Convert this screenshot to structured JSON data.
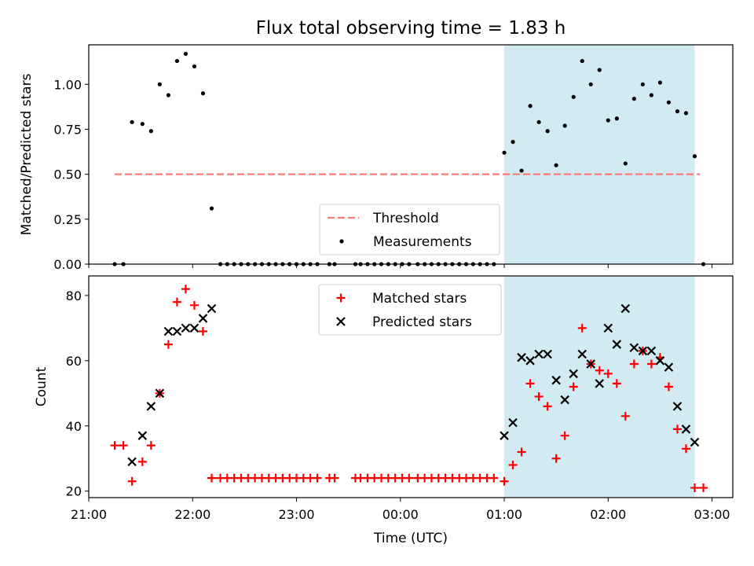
{
  "chart_data": {
    "title": "Flux total observing time = 1.83 h",
    "xlabel": "Time (UTC)",
    "xlim": [
      "2000-01-01T21:00",
      "2000-01-02T03:12"
    ],
    "x_ticks": [
      {
        "t": "2000-01-01T21:00",
        "label": "21:00"
      },
      {
        "t": "2000-01-01T22:00",
        "label": "22:00"
      },
      {
        "t": "2000-01-01T23:00",
        "label": "23:00"
      },
      {
        "t": "2000-01-02T00:00",
        "label": "00:00"
      },
      {
        "t": "2000-01-02T01:00",
        "label": "01:00"
      },
      {
        "t": "2000-01-02T02:00",
        "label": "02:00"
      },
      {
        "t": "2000-01-02T03:00",
        "label": "03:00"
      }
    ],
    "highlight": {
      "start": "2000-01-02T01:00",
      "end": "2000-01-02T02:50",
      "color": "#add8e6"
    },
    "panels": [
      {
        "type": "scatter",
        "ylabel": "Matched/Predicted stars",
        "ylim": [
          0,
          1.22
        ],
        "yticks": [
          "0.00",
          "0.25",
          "0.50",
          "0.75",
          "1.00"
        ],
        "ytick_values": [
          0,
          0.25,
          0.5,
          0.75,
          1.0
        ],
        "threshold": {
          "name": "Threshold",
          "value": 0.5,
          "start": "2000-01-01T21:15",
          "end": "2000-01-02T02:53",
          "color": "#ff7777"
        },
        "legend": {
          "location": "lower-center",
          "entries": [
            "Threshold",
            "Measurements"
          ]
        },
        "series": [
          {
            "name": "Measurements",
            "marker": "dot",
            "color": "#000000",
            "points": [
              [
                "2000-01-01T21:15",
                0
              ],
              [
                "2000-01-01T21:20",
                0
              ],
              [
                "2000-01-01T21:25",
                0.79
              ],
              [
                "2000-01-01T21:31",
                0.78
              ],
              [
                "2000-01-01T21:36",
                0.74
              ],
              [
                "2000-01-01T21:41",
                1.0
              ],
              [
                "2000-01-01T21:46",
                0.94
              ],
              [
                "2000-01-01T21:51",
                1.13
              ],
              [
                "2000-01-01T21:56",
                1.17
              ],
              [
                "2000-01-01T22:01",
                1.1
              ],
              [
                "2000-01-01T22:06",
                0.95
              ],
              [
                "2000-01-01T22:11",
                0.31
              ],
              [
                "2000-01-01T22:16",
                0
              ],
              [
                "2000-01-01T22:20",
                0
              ],
              [
                "2000-01-01T22:24",
                0
              ],
              [
                "2000-01-01T22:28",
                0
              ],
              [
                "2000-01-01T22:32",
                0
              ],
              [
                "2000-01-01T22:36",
                0
              ],
              [
                "2000-01-01T22:40",
                0
              ],
              [
                "2000-01-01T22:44",
                0
              ],
              [
                "2000-01-01T22:48",
                0
              ],
              [
                "2000-01-01T22:52",
                0
              ],
              [
                "2000-01-01T22:56",
                0
              ],
              [
                "2000-01-01T23:00",
                0
              ],
              [
                "2000-01-01T23:04",
                0
              ],
              [
                "2000-01-01T23:08",
                0
              ],
              [
                "2000-01-01T23:12",
                0
              ],
              [
                "2000-01-01T23:19",
                0
              ],
              [
                "2000-01-01T23:22",
                0
              ],
              [
                "2000-01-01T23:34",
                0
              ],
              [
                "2000-01-01T23:37",
                0
              ],
              [
                "2000-01-01T23:41",
                0
              ],
              [
                "2000-01-01T23:45",
                0
              ],
              [
                "2000-01-01T23:49",
                0
              ],
              [
                "2000-01-01T23:53",
                0
              ],
              [
                "2000-01-01T23:57",
                0
              ],
              [
                "2000-01-02T00:01",
                0
              ],
              [
                "2000-01-02T00:05",
                0
              ],
              [
                "2000-01-02T00:10",
                0
              ],
              [
                "2000-01-02T00:14",
                0
              ],
              [
                "2000-01-02T00:18",
                0
              ],
              [
                "2000-01-02T00:22",
                0
              ],
              [
                "2000-01-02T00:26",
                0
              ],
              [
                "2000-01-02T00:30",
                0
              ],
              [
                "2000-01-02T00:34",
                0
              ],
              [
                "2000-01-02T00:38",
                0
              ],
              [
                "2000-01-02T00:42",
                0
              ],
              [
                "2000-01-02T00:46",
                0
              ],
              [
                "2000-01-02T00:50",
                0
              ],
              [
                "2000-01-02T00:54",
                0
              ],
              [
                "2000-01-02T01:00",
                0.62
              ],
              [
                "2000-01-02T01:05",
                0.68
              ],
              [
                "2000-01-02T01:10",
                0.52
              ],
              [
                "2000-01-02T01:15",
                0.88
              ],
              [
                "2000-01-02T01:20",
                0.79
              ],
              [
                "2000-01-02T01:25",
                0.74
              ],
              [
                "2000-01-02T01:30",
                0.55
              ],
              [
                "2000-01-02T01:35",
                0.77
              ],
              [
                "2000-01-02T01:40",
                0.93
              ],
              [
                "2000-01-02T01:45",
                1.13
              ],
              [
                "2000-01-02T01:50",
                1.0
              ],
              [
                "2000-01-02T01:55",
                1.08
              ],
              [
                "2000-01-02T02:00",
                0.8
              ],
              [
                "2000-01-02T02:05",
                0.81
              ],
              [
                "2000-01-02T02:10",
                0.56
              ],
              [
                "2000-01-02T02:15",
                0.92
              ],
              [
                "2000-01-02T02:20",
                1.0
              ],
              [
                "2000-01-02T02:25",
                0.94
              ],
              [
                "2000-01-02T02:30",
                1.01
              ],
              [
                "2000-01-02T02:35",
                0.9
              ],
              [
                "2000-01-02T02:40",
                0.85
              ],
              [
                "2000-01-02T02:45",
                0.84
              ],
              [
                "2000-01-02T02:50",
                0.6
              ],
              [
                "2000-01-02T02:55",
                0
              ]
            ]
          }
        ]
      },
      {
        "type": "scatter",
        "ylabel": "Count",
        "ylim": [
          18,
          86
        ],
        "yticks": [
          "20",
          "40",
          "60",
          "80"
        ],
        "ytick_values": [
          20,
          40,
          60,
          80
        ],
        "legend": {
          "location": "upper-center",
          "entries": [
            "Matched stars",
            "Predicted stars"
          ]
        },
        "series": [
          {
            "name": "Matched stars",
            "marker": "plus",
            "color": "#ff0000",
            "points": [
              [
                "2000-01-01T21:15",
                34
              ],
              [
                "2000-01-01T21:20",
                34
              ],
              [
                "2000-01-01T21:25",
                23
              ],
              [
                "2000-01-01T21:31",
                29
              ],
              [
                "2000-01-01T21:36",
                34
              ],
              [
                "2000-01-01T21:41",
                50
              ],
              [
                "2000-01-01T21:46",
                65
              ],
              [
                "2000-01-01T21:51",
                78
              ],
              [
                "2000-01-01T21:56",
                82
              ],
              [
                "2000-01-01T22:01",
                77
              ],
              [
                "2000-01-01T22:06",
                69
              ],
              [
                "2000-01-01T22:11",
                24
              ],
              [
                "2000-01-01T22:16",
                24
              ],
              [
                "2000-01-01T22:20",
                24
              ],
              [
                "2000-01-01T22:24",
                24
              ],
              [
                "2000-01-01T22:28",
                24
              ],
              [
                "2000-01-01T22:32",
                24
              ],
              [
                "2000-01-01T22:36",
                24
              ],
              [
                "2000-01-01T22:40",
                24
              ],
              [
                "2000-01-01T22:44",
                24
              ],
              [
                "2000-01-01T22:48",
                24
              ],
              [
                "2000-01-01T22:52",
                24
              ],
              [
                "2000-01-01T22:56",
                24
              ],
              [
                "2000-01-01T23:00",
                24
              ],
              [
                "2000-01-01T23:04",
                24
              ],
              [
                "2000-01-01T23:08",
                24
              ],
              [
                "2000-01-01T23:12",
                24
              ],
              [
                "2000-01-01T23:19",
                24
              ],
              [
                "2000-01-01T23:22",
                24
              ],
              [
                "2000-01-01T23:34",
                24
              ],
              [
                "2000-01-01T23:37",
                24
              ],
              [
                "2000-01-01T23:41",
                24
              ],
              [
                "2000-01-01T23:45",
                24
              ],
              [
                "2000-01-01T23:49",
                24
              ],
              [
                "2000-01-01T23:53",
                24
              ],
              [
                "2000-01-01T23:57",
                24
              ],
              [
                "2000-01-02T00:01",
                24
              ],
              [
                "2000-01-02T00:05",
                24
              ],
              [
                "2000-01-02T00:10",
                24
              ],
              [
                "2000-01-02T00:14",
                24
              ],
              [
                "2000-01-02T00:18",
                24
              ],
              [
                "2000-01-02T00:22",
                24
              ],
              [
                "2000-01-02T00:26",
                24
              ],
              [
                "2000-01-02T00:30",
                24
              ],
              [
                "2000-01-02T00:34",
                24
              ],
              [
                "2000-01-02T00:38",
                24
              ],
              [
                "2000-01-02T00:42",
                24
              ],
              [
                "2000-01-02T00:46",
                24
              ],
              [
                "2000-01-02T00:50",
                24
              ],
              [
                "2000-01-02T00:54",
                24
              ],
              [
                "2000-01-02T01:00",
                23
              ],
              [
                "2000-01-02T01:05",
                28
              ],
              [
                "2000-01-02T01:10",
                32
              ],
              [
                "2000-01-02T01:15",
                53
              ],
              [
                "2000-01-02T01:20",
                49
              ],
              [
                "2000-01-02T01:25",
                46
              ],
              [
                "2000-01-02T01:30",
                30
              ],
              [
                "2000-01-02T01:35",
                37
              ],
              [
                "2000-01-02T01:40",
                52
              ],
              [
                "2000-01-02T01:45",
                70
              ],
              [
                "2000-01-02T01:50",
                59
              ],
              [
                "2000-01-02T01:55",
                57
              ],
              [
                "2000-01-02T02:00",
                56
              ],
              [
                "2000-01-02T02:05",
                53
              ],
              [
                "2000-01-02T02:10",
                43
              ],
              [
                "2000-01-02T02:15",
                59
              ],
              [
                "2000-01-02T02:20",
                63
              ],
              [
                "2000-01-02T02:25",
                59
              ],
              [
                "2000-01-02T02:30",
                61
              ],
              [
                "2000-01-02T02:35",
                52
              ],
              [
                "2000-01-02T02:40",
                39
              ],
              [
                "2000-01-02T02:45",
                33
              ],
              [
                "2000-01-02T02:50",
                21
              ],
              [
                "2000-01-02T02:55",
                21
              ]
            ]
          },
          {
            "name": "Predicted stars",
            "marker": "x",
            "color": "#000000",
            "points": [
              [
                "2000-01-01T21:25",
                29
              ],
              [
                "2000-01-01T21:31",
                37
              ],
              [
                "2000-01-01T21:36",
                46
              ],
              [
                "2000-01-01T21:41",
                50
              ],
              [
                "2000-01-01T21:46",
                69
              ],
              [
                "2000-01-01T21:51",
                69
              ],
              [
                "2000-01-01T21:56",
                70
              ],
              [
                "2000-01-01T22:01",
                70
              ],
              [
                "2000-01-01T22:06",
                73
              ],
              [
                "2000-01-01T22:11",
                76
              ],
              [
                "2000-01-02T01:00",
                37
              ],
              [
                "2000-01-02T01:05",
                41
              ],
              [
                "2000-01-02T01:10",
                61
              ],
              [
                "2000-01-02T01:15",
                60
              ],
              [
                "2000-01-02T01:20",
                62
              ],
              [
                "2000-01-02T01:25",
                62
              ],
              [
                "2000-01-02T01:30",
                54
              ],
              [
                "2000-01-02T01:35",
                48
              ],
              [
                "2000-01-02T01:40",
                56
              ],
              [
                "2000-01-02T01:45",
                62
              ],
              [
                "2000-01-02T01:50",
                59
              ],
              [
                "2000-01-02T01:55",
                53
              ],
              [
                "2000-01-02T02:00",
                70
              ],
              [
                "2000-01-02T02:05",
                65
              ],
              [
                "2000-01-02T02:10",
                76
              ],
              [
                "2000-01-02T02:15",
                64
              ],
              [
                "2000-01-02T02:20",
                63
              ],
              [
                "2000-01-02T02:25",
                63
              ],
              [
                "2000-01-02T02:30",
                60
              ],
              [
                "2000-01-02T02:35",
                58
              ],
              [
                "2000-01-02T02:40",
                46
              ],
              [
                "2000-01-02T02:45",
                39
              ],
              [
                "2000-01-02T02:50",
                35
              ]
            ]
          }
        ]
      }
    ]
  }
}
